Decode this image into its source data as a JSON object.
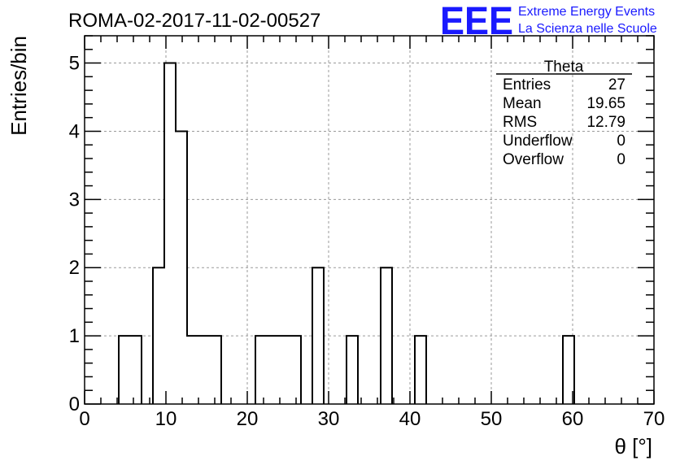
{
  "chart_data": {
    "type": "bar",
    "title": "ROMA-02-2017-11-02-00527",
    "xlabel": "θ [°]",
    "ylabel": "Entries/bin",
    "xlim": [
      0,
      70
    ],
    "ylim": [
      0,
      5.4
    ],
    "x_ticks": [
      0,
      10,
      20,
      30,
      40,
      50,
      60,
      70
    ],
    "y_ticks": [
      0,
      1,
      2,
      3,
      4,
      5
    ],
    "grid": true,
    "bin_width": 1.4,
    "bins": [
      {
        "x0": 4.2,
        "x1": 5.6,
        "count": 1
      },
      {
        "x0": 5.6,
        "x1": 7.0,
        "count": 1
      },
      {
        "x0": 8.4,
        "x1": 9.8,
        "count": 2
      },
      {
        "x0": 9.8,
        "x1": 11.2,
        "count": 5
      },
      {
        "x0": 11.2,
        "x1": 12.6,
        "count": 4
      },
      {
        "x0": 12.6,
        "x1": 14.0,
        "count": 1
      },
      {
        "x0": 14.0,
        "x1": 15.4,
        "count": 1
      },
      {
        "x0": 15.4,
        "x1": 16.8,
        "count": 1
      },
      {
        "x0": 21.0,
        "x1": 22.4,
        "count": 1
      },
      {
        "x0": 22.4,
        "x1": 23.8,
        "count": 1
      },
      {
        "x0": 23.8,
        "x1": 25.2,
        "count": 1
      },
      {
        "x0": 25.2,
        "x1": 26.6,
        "count": 1
      },
      {
        "x0": 28.0,
        "x1": 29.4,
        "count": 2
      },
      {
        "x0": 32.2,
        "x1": 33.6,
        "count": 1
      },
      {
        "x0": 36.4,
        "x1": 37.8,
        "count": 2
      },
      {
        "x0": 40.6,
        "x1": 42.0,
        "count": 1
      },
      {
        "x0": 58.8,
        "x1": 60.2,
        "count": 1
      }
    ],
    "stats_box": {
      "title": "Theta",
      "rows": [
        {
          "label": "Entries",
          "value": "27"
        },
        {
          "label": "Mean",
          "value": "19.65"
        },
        {
          "label": "RMS",
          "value": "12.79"
        },
        {
          "label": "Underflow",
          "value": "0"
        },
        {
          "label": "Overflow",
          "value": "0"
        }
      ]
    }
  },
  "logo": {
    "mark": "EEE",
    "line1": "Extreme Energy Events",
    "line2": "La Scienza nelle Scuole",
    "color": "#1a1aff"
  }
}
